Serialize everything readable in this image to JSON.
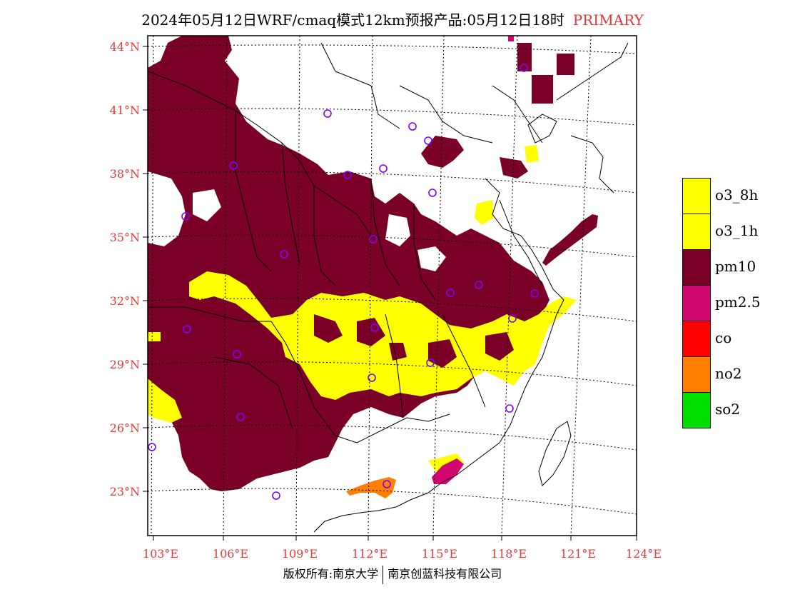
{
  "title": {
    "text": "2024年05月12日WRF/cmaq模式12km预报产品:05月12日18时",
    "tag": "PRIMARY",
    "tag_color": "#e03a3a"
  },
  "lat_labels": [
    "44°N",
    "41°N",
    "38°N",
    "35°N",
    "32°N",
    "29°N",
    "26°N",
    "23°N"
  ],
  "lon_labels": [
    "103°E",
    "106°E",
    "109°E",
    "112°E",
    "115°E",
    "118°E",
    "121°E",
    "124°E"
  ],
  "legend": [
    {
      "label": "o3_8h",
      "color": "#ffff00"
    },
    {
      "label": "o3_1h",
      "color": "#ffff00"
    },
    {
      "label": "pm10",
      "color": "#7a0028"
    },
    {
      "label": "pm2.5",
      "color": "#d1066f"
    },
    {
      "label": "co",
      "color": "#ff0000"
    },
    {
      "label": "no2",
      "color": "#ff7f00"
    },
    {
      "label": "so2",
      "color": "#00e000"
    }
  ],
  "footer": {
    "left": "版权所有:南京大学",
    "right": "南京创蓝科技有限公司"
  },
  "colors": {
    "pm10": "#7a0028",
    "o3": "#ffff00",
    "pm25": "#d1066f",
    "no2": "#ff7f00",
    "station_marker": "#8000ff",
    "axis_label": "#e03a3a"
  },
  "map_layers": [
    "pm10-region",
    "o3-region",
    "pm25-region",
    "no2-region",
    "province-borders",
    "coastline",
    "graticule",
    "station-markers"
  ]
}
